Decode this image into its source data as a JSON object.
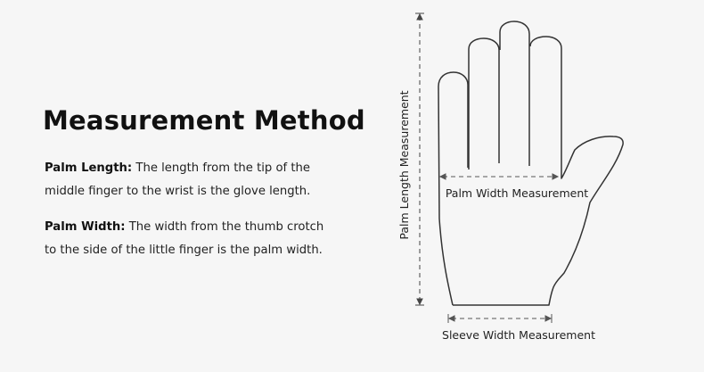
{
  "heading": "Measurement Method",
  "palm_length": {
    "label": "Palm Length:",
    "text_line1": " The length from the tip of the",
    "text_line2": "middle finger to the wrist is the glove length."
  },
  "palm_width": {
    "label": "Palm Width:",
    "text_line1": " The width from the thumb crotch",
    "text_line2": "to the side of the little finger is the palm width."
  },
  "diagram": {
    "palm_length_label": "Palm Length Measurement",
    "palm_width_label": "Palm Width Measurement",
    "sleeve_width_label": "Sleeve Width Measurement"
  }
}
